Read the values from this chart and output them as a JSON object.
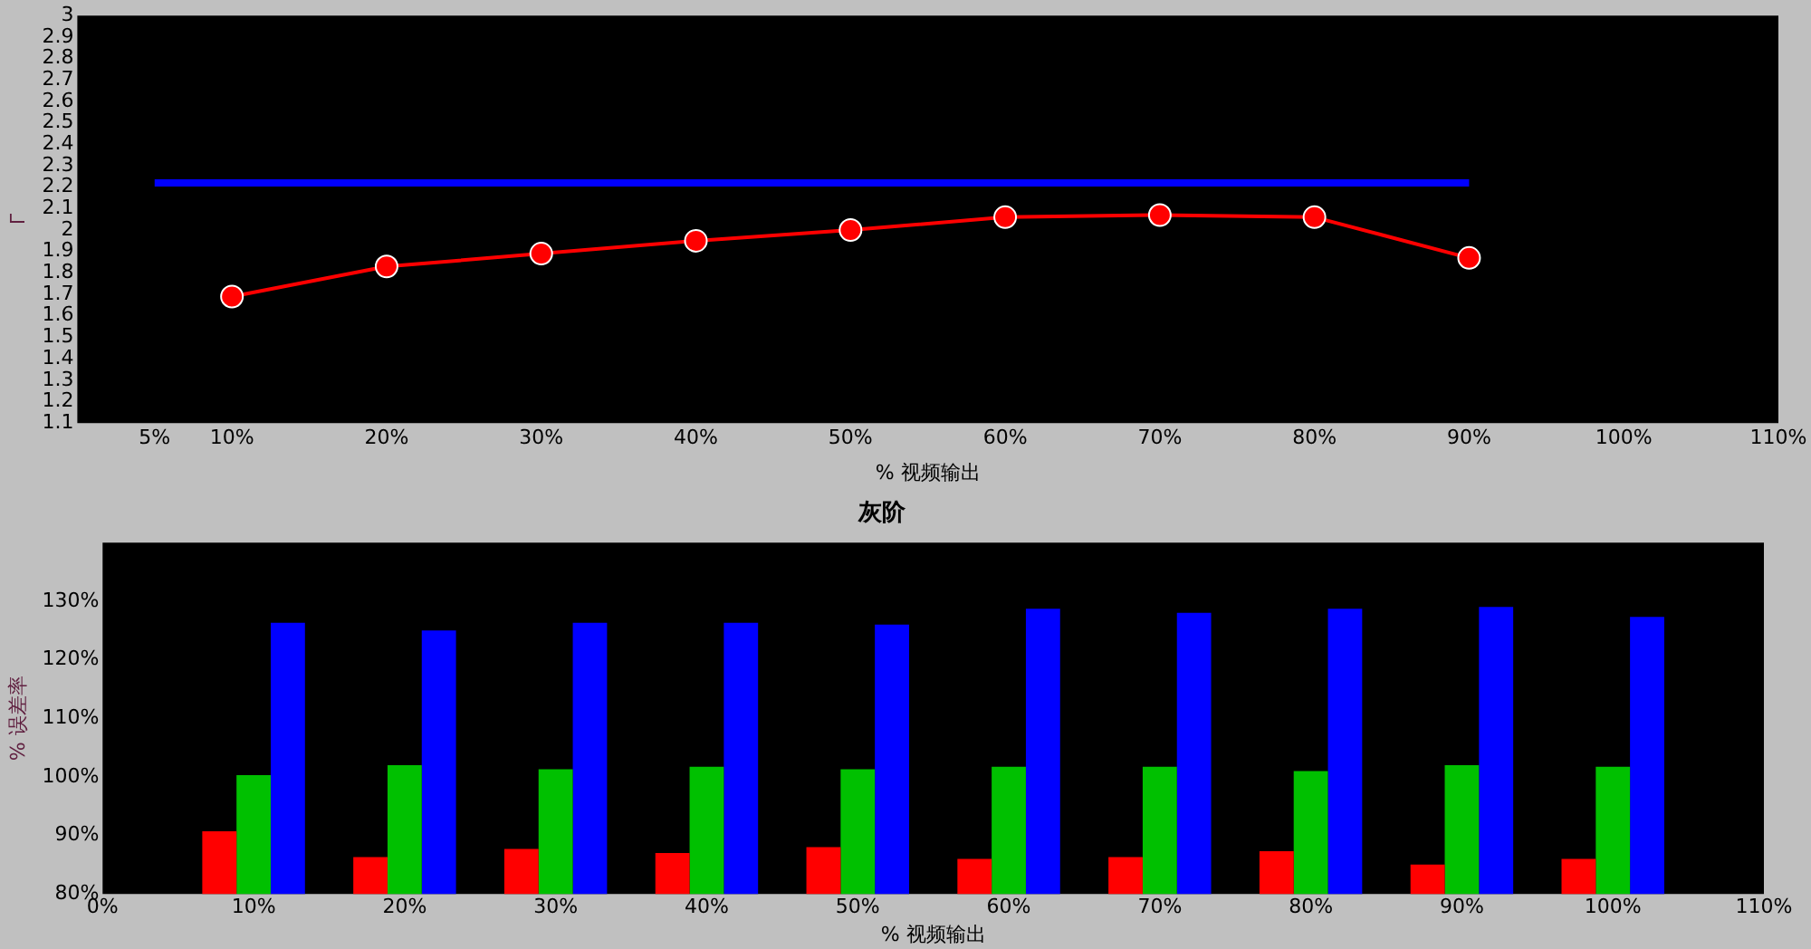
{
  "chart_data": [
    {
      "type": "line",
      "ylabel": "Γ",
      "xlabel": "% 视频输出",
      "xlim": [
        0,
        110
      ],
      "xticks": [
        {
          "value": 5,
          "label": "5%"
        },
        {
          "value": 10,
          "label": "10%"
        },
        {
          "value": 20,
          "label": "20%"
        },
        {
          "value": 30,
          "label": "30%"
        },
        {
          "value": 40,
          "label": "40%"
        },
        {
          "value": 50,
          "label": "50%"
        },
        {
          "value": 60,
          "label": "60%"
        },
        {
          "value": 70,
          "label": "70%"
        },
        {
          "value": 80,
          "label": "80%"
        },
        {
          "value": 90,
          "label": "90%"
        },
        {
          "value": 100,
          "label": "100%"
        },
        {
          "value": 110,
          "label": "110%"
        }
      ],
      "ylim": [
        1.1,
        3
      ],
      "yticks": [
        1.1,
        1.2,
        1.3,
        1.4,
        1.5,
        1.6,
        1.7,
        1.8,
        1.9,
        2,
        2.1,
        2.2,
        2.3,
        2.4,
        2.5,
        2.6,
        2.7,
        2.8,
        2.9,
        3
      ],
      "legend": false,
      "grid": false,
      "series": [
        {
          "color": "#0000ff",
          "marker": "none",
          "x": [
            5,
            90
          ],
          "values": [
            2.22,
            2.22
          ]
        },
        {
          "color": "#ff0000",
          "marker": "circle",
          "x": [
            10,
            20,
            30,
            40,
            50,
            60,
            70,
            80,
            90
          ],
          "values": [
            1.69,
            1.83,
            1.89,
            1.95,
            2.0,
            2.06,
            2.07,
            2.06,
            1.87
          ]
        }
      ]
    },
    {
      "type": "bar",
      "title": "灰阶",
      "xlabel": "% 视频输出",
      "ylabel": "% 误差率",
      "categories": [
        "0%",
        "10%",
        "20%",
        "30%",
        "40%",
        "50%",
        "60%",
        "70%",
        "80%",
        "90%",
        "100%",
        "110%"
      ],
      "ylim": [
        80,
        140
      ],
      "yticks": [
        {
          "value": 80,
          "label": "80%"
        },
        {
          "value": 90,
          "label": "90%"
        },
        {
          "value": 100,
          "label": "100%"
        },
        {
          "value": 110,
          "label": "110%"
        },
        {
          "value": 120,
          "label": "120%"
        },
        {
          "value": 130,
          "label": "130%"
        }
      ],
      "legend": false,
      "grid": false,
      "series": [
        {
          "color": "#ff0000",
          "values": [
            null,
            90.7,
            86.3,
            87.7,
            87,
            88,
            86,
            86.3,
            87.3,
            85,
            86,
            null
          ]
        },
        {
          "color": "#00c000",
          "values": [
            null,
            100.3,
            102,
            101.3,
            101.7,
            101.3,
            101.7,
            101.7,
            101,
            102,
            101.7,
            null
          ]
        },
        {
          "color": "#0000ff",
          "values": [
            null,
            126.3,
            125,
            126.3,
            126.3,
            126,
            128.7,
            128,
            128.7,
            129,
            127.3,
            null
          ]
        }
      ]
    }
  ]
}
